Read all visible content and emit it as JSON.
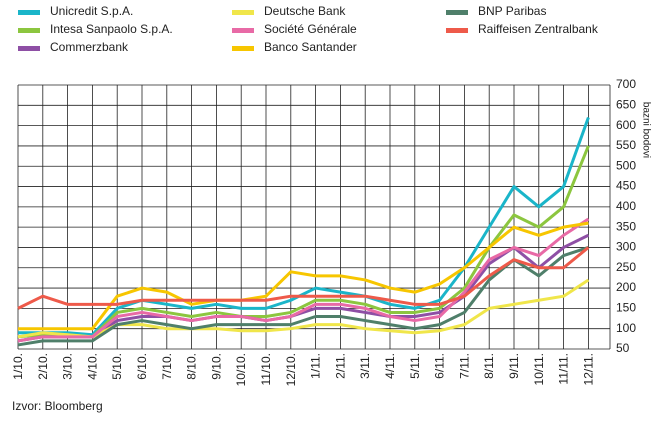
{
  "chart_data": {
    "type": "line",
    "y_label": "bazni bodovi",
    "source": "Izvor: Bloomberg",
    "categories": [
      "1/10.",
      "2/10.",
      "3/10.",
      "4/10.",
      "5/10.",
      "6/10.",
      "7/10.",
      "8/10.",
      "9/10.",
      "10/10.",
      "11/10.",
      "12/10.",
      "1/11.",
      "2/11.",
      "3/11.",
      "4/11.",
      "5/11.",
      "6/11.",
      "7/11.",
      "8/11.",
      "9/11.",
      "10/11.",
      "11/11.",
      "12/11."
    ],
    "series": [
      {
        "name": "Unicredit S.p.A.",
        "color": "#1ab5c9",
        "values": [
          90,
          90,
          90,
          85,
          150,
          170,
          160,
          150,
          160,
          150,
          150,
          170,
          200,
          190,
          180,
          160,
          150,
          170,
          250,
          350,
          450,
          400,
          450,
          620
        ]
      },
      {
        "name": "Intesa Sanpaolo S.p.A.",
        "color": "#8cc63f",
        "values": [
          80,
          85,
          85,
          80,
          140,
          150,
          140,
          130,
          140,
          130,
          130,
          140,
          170,
          170,
          160,
          140,
          140,
          150,
          200,
          300,
          380,
          350,
          400,
          550
        ]
      },
      {
        "name": "Commerzbank",
        "color": "#8e4fa5",
        "values": [
          70,
          80,
          80,
          80,
          120,
          130,
          130,
          120,
          130,
          130,
          120,
          130,
          150,
          150,
          140,
          130,
          130,
          140,
          180,
          260,
          300,
          250,
          300,
          330
        ]
      },
      {
        "name": "Deutsche Bank",
        "color": "#f0e64a",
        "values": [
          80,
          90,
          85,
          80,
          110,
          110,
          100,
          100,
          100,
          95,
          95,
          100,
          110,
          110,
          100,
          95,
          90,
          95,
          110,
          150,
          160,
          170,
          180,
          220
        ]
      },
      {
        "name": "Société Générale",
        "color": "#e86aa6",
        "values": [
          70,
          80,
          80,
          80,
          130,
          140,
          130,
          120,
          130,
          130,
          120,
          130,
          160,
          160,
          150,
          130,
          120,
          130,
          190,
          270,
          300,
          280,
          330,
          370
        ]
      },
      {
        "name": "Banco Santander",
        "color": "#f7c600",
        "values": [
          100,
          100,
          100,
          100,
          180,
          200,
          190,
          160,
          170,
          170,
          180,
          240,
          230,
          230,
          220,
          200,
          190,
          210,
          250,
          300,
          350,
          330,
          350,
          360
        ]
      },
      {
        "name": "BNP Paribas",
        "color": "#4f7f6a",
        "values": [
          60,
          70,
          70,
          70,
          110,
          120,
          110,
          100,
          110,
          110,
          110,
          110,
          130,
          130,
          120,
          110,
          100,
          110,
          140,
          220,
          270,
          230,
          280,
          300
        ]
      },
      {
        "name": "Raiffeisen Zentralbank",
        "color": "#ee5a4a",
        "values": [
          150,
          180,
          160,
          160,
          160,
          170,
          170,
          170,
          170,
          170,
          170,
          180,
          180,
          180,
          180,
          170,
          160,
          160,
          180,
          230,
          270,
          250,
          250,
          300
        ]
      }
    ],
    "ylim": [
      50,
      700
    ],
    "yticks": [
      50,
      100,
      150,
      200,
      250,
      300,
      350,
      400,
      450,
      500,
      550,
      600,
      650,
      700
    ],
    "grid": true
  }
}
